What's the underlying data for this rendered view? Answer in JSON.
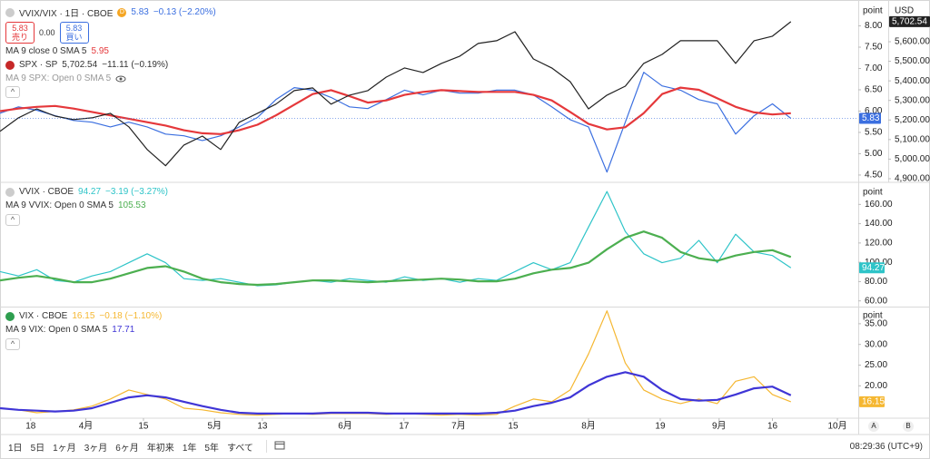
{
  "chart_data": [
    {
      "type": "line",
      "x": [
        0,
        3,
        6,
        9,
        12,
        15,
        18,
        21,
        24,
        27,
        30,
        33,
        36,
        39,
        42,
        45,
        48,
        51,
        54,
        57,
        60,
        63,
        66,
        69,
        72,
        75,
        78,
        81,
        84,
        87,
        90,
        93,
        96,
        99,
        102,
        105,
        108,
        111,
        114,
        117,
        120,
        123,
        126,
        129
      ],
      "xlim": [
        0,
        140
      ],
      "ylim": [
        4.35,
        8.5
      ],
      "y2lim": [
        4886,
        5790
      ],
      "grid": false,
      "yunit": "point",
      "y2unit": "USD",
      "yticks": [
        {
          "value": 4.5,
          "label": "4.50"
        },
        {
          "value": 5,
          "label": "5.00"
        },
        {
          "value": 5.5,
          "label": "5.50"
        },
        {
          "value": 6,
          "label": "6.00"
        },
        {
          "value": 6.5,
          "label": "6.50"
        },
        {
          "value": 7,
          "label": "7.00"
        },
        {
          "value": 7.5,
          "label": "7.50"
        },
        {
          "value": 8,
          "label": "8.00"
        }
      ],
      "y2ticks": [
        {
          "value": 4900,
          "label": "4,900.00"
        },
        {
          "value": 5000,
          "label": "5,000.00"
        },
        {
          "value": 5100,
          "label": "5,100.00"
        },
        {
          "value": 5200,
          "label": "5,200.00"
        },
        {
          "value": 5300,
          "label": "5,300.00"
        },
        {
          "value": 5400,
          "label": "5,400.00"
        },
        {
          "value": 5500,
          "label": "5,500.00"
        },
        {
          "value": 5600,
          "label": "5,600.00"
        }
      ],
      "series": [
        {
          "name": "VVIX/VIX · 1日 · CBOE",
          "color": "#3b6fe0",
          "values": [
            5.95,
            6.1,
            6.02,
            5.89,
            5.78,
            5.74,
            5.63,
            5.74,
            5.63,
            5.46,
            5.42,
            5.31,
            5.42,
            5.63,
            5.85,
            6.27,
            6.55,
            6.49,
            6.32,
            6.1,
            6.06,
            6.27,
            6.49,
            6.38,
            6.49,
            6.42,
            6.42,
            6.49,
            6.49,
            6.38,
            6.1,
            5.8,
            5.63,
            4.57,
            5.74,
            6.91,
            6.59,
            6.49,
            6.27,
            6.17,
            5.46,
            5.89,
            6.17,
            5.83
          ]
        },
        {
          "name": "MA 9 close 0 SMA 5",
          "color": "#e5383b",
          "values": [
            6.0,
            6.06,
            6.1,
            6.12,
            6.06,
            5.98,
            5.9,
            5.82,
            5.74,
            5.66,
            5.55,
            5.48,
            5.46,
            5.55,
            5.68,
            5.9,
            6.15,
            6.4,
            6.49,
            6.35,
            6.2,
            6.25,
            6.38,
            6.45,
            6.49,
            6.47,
            6.45,
            6.45,
            6.45,
            6.38,
            6.25,
            5.98,
            5.7,
            5.57,
            5.62,
            5.95,
            6.4,
            6.55,
            6.5,
            6.3,
            6.1,
            5.97,
            5.92,
            5.95
          ]
        },
        {
          "name": "SPX · SP",
          "color": "#222222",
          "axis": "y2",
          "values": [
            5142,
            5211,
            5257,
            5220,
            5202,
            5211,
            5234,
            5165,
            5049,
            4966,
            5072,
            5118,
            5049,
            5188,
            5234,
            5281,
            5350,
            5364,
            5281,
            5327,
            5350,
            5419,
            5466,
            5443,
            5489,
            5526,
            5591,
            5605,
            5651,
            5512,
            5466,
            5396,
            5257,
            5327,
            5373,
            5489,
            5535,
            5605,
            5605,
            5605,
            5489,
            5605,
            5628,
            5702.54
          ]
        }
      ],
      "legend": {
        "badge": "D",
        "change": "−0.13 (−2.20%)",
        "sell_price": "5.83",
        "sell_label": "売り",
        "spread": "0.00",
        "buy_price": "5.83",
        "buy_label": "買い",
        "spx_last": "5,702.54",
        "spx_change": "−11.11 (−0.19%)",
        "hidden_ma": "MA 9 SPX: Open 0 SMA 5"
      }
    },
    {
      "type": "line",
      "x": [
        0,
        3,
        6,
        9,
        12,
        15,
        18,
        21,
        24,
        27,
        30,
        33,
        36,
        39,
        42,
        45,
        48,
        51,
        54,
        57,
        60,
        63,
        66,
        69,
        72,
        75,
        78,
        81,
        84,
        87,
        90,
        93,
        96,
        99,
        102,
        105,
        108,
        111,
        114,
        117,
        120,
        123,
        126,
        129
      ],
      "xlim": [
        0,
        140
      ],
      "ylim": [
        55,
        181
      ],
      "grid": false,
      "yunit": "point",
      "yticks": [
        {
          "value": 60,
          "label": "60.00"
        },
        {
          "value": 80,
          "label": "80.00"
        },
        {
          "value": 100,
          "label": "100.00"
        },
        {
          "value": 120,
          "label": "120.00"
        },
        {
          "value": 140,
          "label": "140.00"
        },
        {
          "value": 160,
          "label": "160.00"
        }
      ],
      "series": [
        {
          "name": "VVIX · CBOE",
          "color": "#2ec4c8",
          "values": [
            90.4,
            85.8,
            92.3,
            81.2,
            79.4,
            85.8,
            90.4,
            99.6,
            108.8,
            99.6,
            83,
            81.2,
            83,
            79.4,
            75.7,
            76.6,
            79.4,
            81.2,
            79.4,
            83,
            81.2,
            79.4,
            84.9,
            81.2,
            83,
            79.4,
            83,
            81.2,
            90.4,
            99.6,
            92.3,
            99.6,
            136.5,
            173.4,
            131.9,
            108.8,
            99.6,
            104.2,
            122.7,
            99.6,
            129.1,
            110.7,
            107,
            94.27
          ]
        },
        {
          "name": "MA 9 VVIX: Open 0 SMA 5",
          "color": "#4caf50",
          "values": [
            81.2,
            84,
            85.8,
            83,
            79.4,
            79.4,
            83,
            88.6,
            94.1,
            95.9,
            90.4,
            83,
            79.4,
            77.5,
            76.6,
            77.5,
            79.4,
            81.2,
            81.2,
            80.3,
            79.4,
            80.3,
            81.2,
            82.1,
            83,
            82.1,
            80.3,
            80.3,
            83,
            88.6,
            92.3,
            94.1,
            99.6,
            113.5,
            125.4,
            131.9,
            125.4,
            110.7,
            104.2,
            101.5,
            107,
            110.7,
            112.5,
            105.53
          ]
        }
      ],
      "legend": {
        "change": "−3.19 (−3.27%)"
      }
    },
    {
      "type": "line",
      "x": [
        0,
        3,
        6,
        9,
        12,
        15,
        18,
        21,
        24,
        27,
        30,
        33,
        36,
        39,
        42,
        45,
        48,
        51,
        54,
        57,
        60,
        63,
        66,
        69,
        72,
        75,
        78,
        81,
        84,
        87,
        90,
        93,
        96,
        99,
        102,
        105,
        108,
        111,
        114,
        117,
        120,
        123,
        126,
        129
      ],
      "xlim": [
        0,
        140
      ],
      "ylim": [
        12.4,
        38.7
      ],
      "grid": false,
      "yunit": "point",
      "yticks": [
        {
          "value": 20,
          "label": "20.00"
        },
        {
          "value": 25,
          "label": "25.00"
        },
        {
          "value": 30,
          "label": "30.00"
        },
        {
          "value": 35,
          "label": "35.00"
        }
      ],
      "xticks": [
        {
          "value": 5,
          "label": "18"
        },
        {
          "value": 14,
          "label": "4月"
        },
        {
          "value": 23.4,
          "label": "15"
        },
        {
          "value": 35,
          "label": "5月"
        },
        {
          "value": 42.8,
          "label": "13"
        },
        {
          "value": 56.3,
          "label": "6月"
        },
        {
          "value": 65.9,
          "label": "17"
        },
        {
          "value": 74.8,
          "label": "7月"
        },
        {
          "value": 83.7,
          "label": "15"
        },
        {
          "value": 96,
          "label": "8月"
        },
        {
          "value": 107.7,
          "label": "19"
        },
        {
          "value": 117.3,
          "label": "9月"
        },
        {
          "value": 126,
          "label": "16"
        },
        {
          "value": 136.6,
          "label": "10月"
        }
      ],
      "series": [
        {
          "name": "VIX · CBOE",
          "color": "#f5b731",
          "values": [
            14.6,
            14.2,
            13.5,
            13.8,
            14.2,
            15.1,
            16.8,
            19,
            17.9,
            16.8,
            14.6,
            14.2,
            13.5,
            13.1,
            12.9,
            13.1,
            13.3,
            13.1,
            13.3,
            13.3,
            13.3,
            13.1,
            13.3,
            13.1,
            12.9,
            13.1,
            12.9,
            13.1,
            15.1,
            16.8,
            16.15,
            19,
            27.7,
            38.1,
            25.5,
            19,
            16.8,
            15.7,
            16.8,
            15.7,
            21.1,
            22.2,
            17.9,
            16.15
          ]
        },
        {
          "name": "MA 9 VIX: Open 0 SMA 5",
          "color": "#3f35d6",
          "values": [
            14.6,
            14.2,
            14,
            13.8,
            14,
            14.6,
            15.9,
            17.2,
            17.7,
            17.2,
            16.15,
            15.1,
            14.2,
            13.5,
            13.3,
            13.3,
            13.3,
            13.3,
            13.5,
            13.5,
            13.5,
            13.3,
            13.3,
            13.3,
            13.3,
            13.3,
            13.3,
            13.5,
            14,
            15.1,
            15.9,
            17.2,
            20.1,
            22.2,
            23.3,
            22.2,
            19,
            16.8,
            16.4,
            16.6,
            17.9,
            19.4,
            19.8,
            17.71
          ]
        }
      ],
      "legend": {
        "change": "−0.18 (−1.10%)"
      }
    }
  ],
  "toolbar": {
    "ranges": [
      "1日",
      "5日",
      "1ヶ月",
      "3ヶ月",
      "6ヶ月",
      "年初来",
      "1年",
      "5年",
      "すべて"
    ],
    "time": "08:29:36 (UTC+9)",
    "scale_buttons": [
      "A",
      "B"
    ]
  }
}
